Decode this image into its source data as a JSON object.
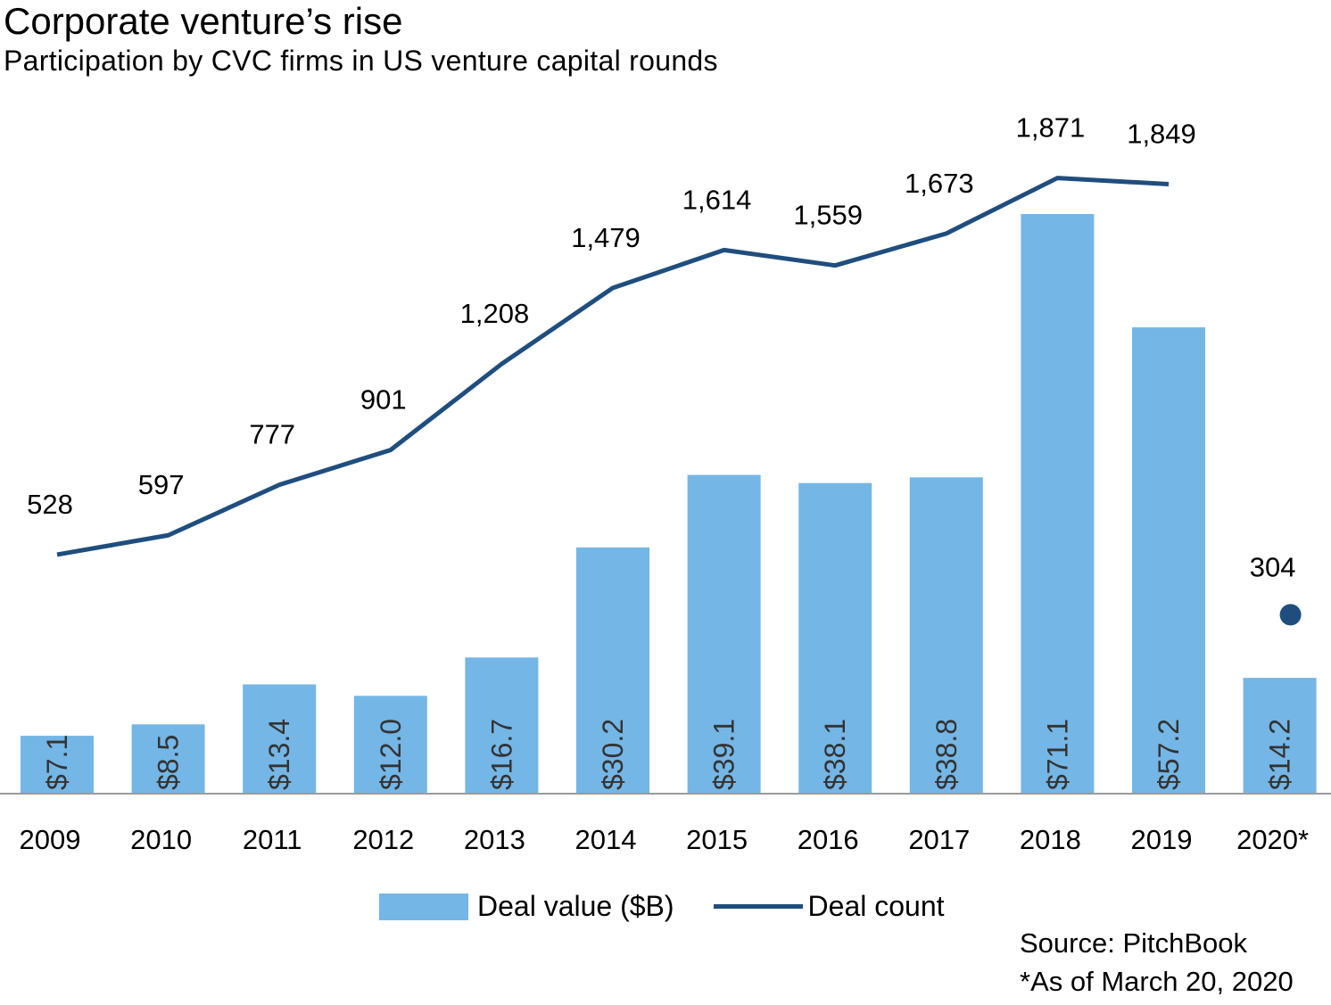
{
  "title": "Corporate venture’s rise",
  "subtitle": "Participation by CVC firms in US venture capital rounds",
  "chart_data": {
    "type": "bar",
    "categories": [
      "2009",
      "2010",
      "2011",
      "2012",
      "2013",
      "2014",
      "2015",
      "2016",
      "2017",
      "2018",
      "2019",
      "2020*"
    ],
    "series": [
      {
        "name": "Deal value ($B)",
        "type": "bar",
        "values": [
          7.1,
          8.5,
          13.4,
          12.0,
          16.7,
          30.2,
          39.1,
          38.1,
          38.8,
          71.1,
          57.2,
          14.2
        ],
        "labels": [
          "$7.1",
          "$8.5",
          "$13.4",
          "$12.0",
          "$16.7",
          "$30.2",
          "$39.1",
          "$38.1",
          "$38.8",
          "$71.1",
          "$57.2",
          "$14.2"
        ],
        "color": "#74b6e6"
      },
      {
        "name": "Deal count",
        "type": "line",
        "values": [
          528,
          597,
          777,
          901,
          1208,
          1479,
          1614,
          1559,
          1673,
          1871,
          1849,
          304
        ],
        "labels": [
          "528",
          "597",
          "777",
          "901",
          "1,208",
          "1,479",
          "1,614",
          "1,559",
          "1,673",
          "1,871",
          "1,849",
          "304"
        ],
        "color": "#1f4e7e"
      }
    ],
    "line_connected_through": "2019",
    "marker_only_for": "2020*"
  },
  "legend": {
    "bar_label": "Deal value ($B)",
    "line_label": "Deal count"
  },
  "source": "Source: PitchBook",
  "footnote": "*As of March 20, 2020"
}
